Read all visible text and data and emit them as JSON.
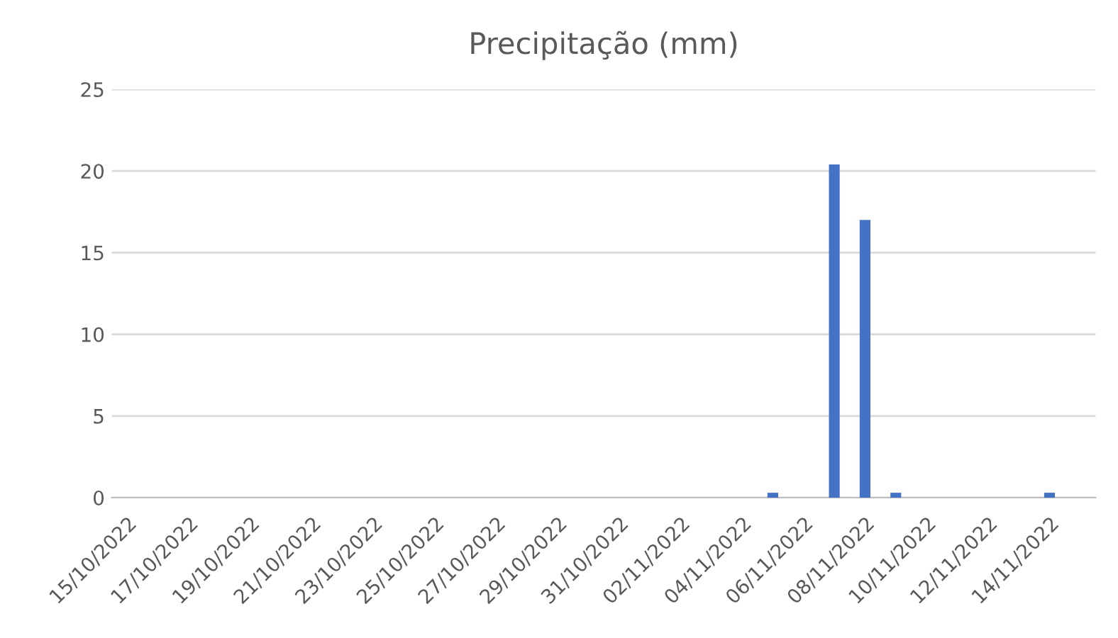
{
  "chart_data": {
    "type": "bar",
    "title": "Precipitação (mm)",
    "categories": [
      "15/10/2022",
      null,
      "17/10/2022",
      null,
      "19/10/2022",
      null,
      "21/10/2022",
      null,
      "23/10/2022",
      null,
      "25/10/2022",
      null,
      "27/10/2022",
      null,
      "29/10/2022",
      null,
      "31/10/2022",
      null,
      "02/11/2022",
      null,
      "04/11/2022",
      null,
      "06/11/2022",
      null,
      "08/11/2022",
      null,
      "10/11/2022",
      null,
      "12/11/2022",
      null,
      "14/11/2022",
      null
    ],
    "values": [
      0,
      0,
      0,
      0,
      0,
      0,
      0,
      0,
      0,
      0,
      0,
      0,
      0,
      0,
      0,
      0,
      0,
      0,
      0,
      0,
      0,
      0.3,
      0,
      20.4,
      17,
      0.3,
      0,
      0,
      0,
      0,
      0.3,
      0
    ],
    "color": "#4472c4",
    "ylim": [
      0,
      25
    ],
    "yticks": [
      0,
      5,
      10,
      15,
      20,
      25
    ],
    "grid": "y",
    "legend": false
  }
}
